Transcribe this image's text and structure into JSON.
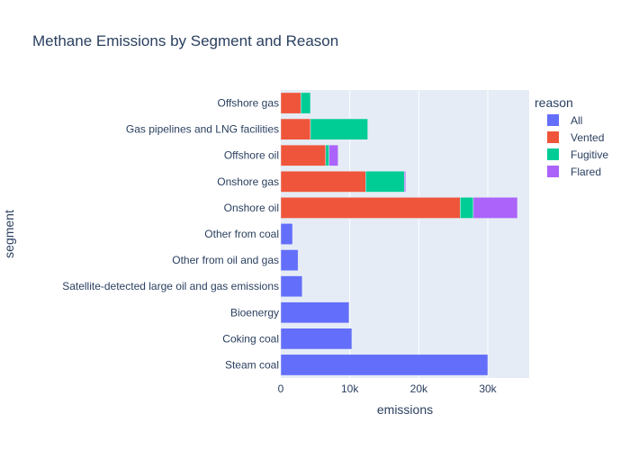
{
  "chart_data": {
    "type": "bar",
    "orientation": "horizontal",
    "barmode": "stack",
    "title": "Methane Emissions by Segment and Reason",
    "xlabel": "emissions",
    "ylabel": "segment",
    "xlim": [
      0,
      36000
    ],
    "x_ticks": [
      0,
      10000,
      20000,
      30000
    ],
    "x_tick_labels": [
      "0",
      "10k",
      "20k",
      "30k"
    ],
    "grid": true,
    "legend_title": "reason",
    "legend_position": "right",
    "categories": [
      "Offshore gas",
      "Gas pipelines and LNG facilities",
      "Offshore oil",
      "Onshore gas",
      "Onshore oil",
      "Other from coal",
      "Other from oil and gas",
      "Satellite-detected large oil and gas emissions",
      "Bioenergy",
      "Coking coal",
      "Steam coal"
    ],
    "series": [
      {
        "name": "All",
        "color": "#636efa",
        "values": [
          0,
          0,
          0,
          0,
          0,
          1700,
          2500,
          3100,
          9900,
          10300,
          30000
        ]
      },
      {
        "name": "Vented",
        "color": "#ef553b",
        "values": [
          2900,
          4300,
          6500,
          12300,
          26000,
          0,
          0,
          0,
          0,
          0,
          0
        ]
      },
      {
        "name": "Fugitive",
        "color": "#00cc96",
        "values": [
          1400,
          8300,
          500,
          5600,
          1900,
          0,
          0,
          0,
          0,
          0,
          0
        ]
      },
      {
        "name": "Flared",
        "color": "#ab63fa",
        "values": [
          0,
          0,
          1300,
          200,
          6400,
          0,
          0,
          0,
          0,
          0,
          0
        ]
      }
    ]
  }
}
